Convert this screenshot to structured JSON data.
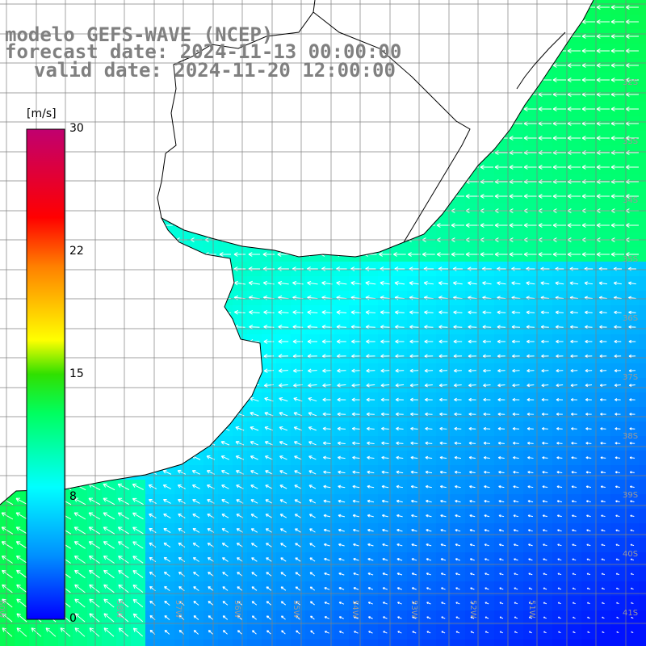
{
  "title": {
    "line1": "modelo GEFS-WAVE (NCEP)",
    "line2": "forecast date: 2024-11-13 00:00:00",
    "line3": "valid date: 2024-11-20 12:00:00"
  },
  "colorbar": {
    "unit": "[m/s]",
    "ticks": [
      "30",
      "22",
      "15",
      "8",
      "0"
    ],
    "colors": [
      "#0000ff",
      "#00a0ff",
      "#00ffff",
      "#00ff60",
      "#00d000",
      "#ffff00",
      "#ff8000",
      "#ff0000",
      "#c00070"
    ]
  },
  "grid": {
    "lat_labels": [
      "32S",
      "33S",
      "34S",
      "35S",
      "36S",
      "37S",
      "38S",
      "39S",
      "40S",
      "41S"
    ],
    "lon_labels": [
      "60W",
      "59W",
      "58W",
      "57W",
      "56W",
      "55W",
      "54W",
      "53W",
      "52W",
      "51W"
    ]
  },
  "colors": {
    "land": "#ffffff",
    "coast": "#000000",
    "grid": "#808080",
    "arrow": "#ffffff"
  }
}
